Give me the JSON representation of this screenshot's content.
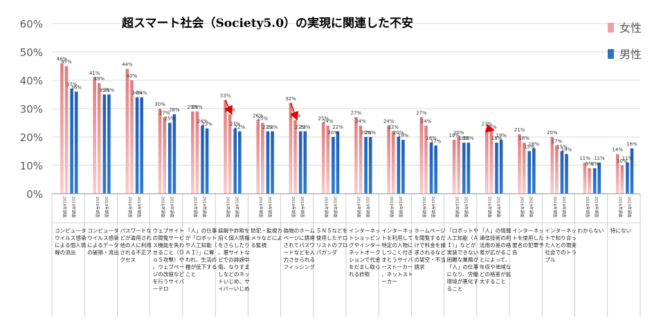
{
  "chart_data": {
    "type": "bar",
    "title": "超スマート社会（Society5.0）の実現に関連した不安",
    "ylim": [
      0,
      60
    ],
    "yticks": [
      "0%",
      "10%",
      "20%",
      "30%",
      "40%",
      "50%",
      "60%"
    ],
    "grid": true,
    "legend_position": "right",
    "year_labels": [
      "2016年調査",
      "2019年調査"
    ],
    "categories": [
      "コンピュータウイルス感染による個人情報の流出",
      "コンピュータウイルス感染によるデータの破損・流出",
      "パスワードなどが盗用され他の人に利用される不正アクセス",
      "ウェブサイトの閲覧サービス機能を失わせること（ＤｏＳ攻撃）や、ウェブページの改竄などを行うサイバーテロ",
      "「人」の仕事が「ロボットや人工知能（ＡＩ）」に奪われ、生活の糧が低下すること",
      "誤解や詐欺を招く個人情報をさらしたり、悪サイトなどでの誹謗中傷、なりすましなどのネットいじめ、サイバーいじめ",
      "防犯・監視カメラなどによる監視",
      "偽物のホームページに誘導されてパスワードなどを入力させられるフィッシング",
      "ＳＮＳなどを使用したテロリストのプロパガンダ",
      "インターネットショッピングやインターネットオークションで代金をだまし取られる詐欺",
      "インターネットを利用して特定の人物にしつこく付きまとうサイバーストーカー、ネットストーカー",
      "ホームページを閲覧するだけで料金を請求されるなどの架空・不当請求",
      "「ロボットや人工知能（ＡＩ）」などが実装できない困難な業務が「人」の仕事になり、労働環境が悪化すること",
      "「人」の情報通信技術の利活用の差の格差が広がることによって、年収や地域などの格差が拡大すること",
      "インターネットを使用した匿名の犯罪予告",
      "インターネットで知り合った人との現実社会でのトラブル",
      "わからない",
      "特にない"
    ],
    "series": [
      {
        "name": "女性",
        "color": "#f0a0a0",
        "values": [
          46,
          41,
          44,
          30,
          29,
          33,
          26,
          32,
          25,
          27,
          24,
          27,
          19,
          23,
          21,
          20,
          11,
          14
        ]
      },
      {
        "name": "女性",
        "color": "#f0a0a0",
        "values": [
          45,
          39,
          40,
          27,
          29,
          28,
          25,
          26,
          24,
          24,
          22,
          24,
          20,
          22,
          18,
          17,
          9,
          10
        ]
      },
      {
        "name": "男性",
        "color": "#2f6fc0",
        "values": [
          37,
          35,
          34,
          25,
          24,
          23,
          22,
          22,
          20,
          20,
          20,
          18,
          18,
          18,
          15,
          15,
          9,
          11
        ]
      },
      {
        "name": "男性",
        "color": "#2f6fc0",
        "values": [
          36,
          35,
          34,
          28,
          23,
          22,
          22,
          22,
          22,
          20,
          19,
          17,
          18,
          19,
          16,
          14,
          11,
          16
        ]
      }
    ],
    "arrows": [
      5,
      7,
      13
    ]
  },
  "legend": {
    "items": [
      {
        "name": "女性",
        "color": "#f0a0a0"
      },
      {
        "name": "男性",
        "color": "#2f6fc0"
      }
    ]
  }
}
